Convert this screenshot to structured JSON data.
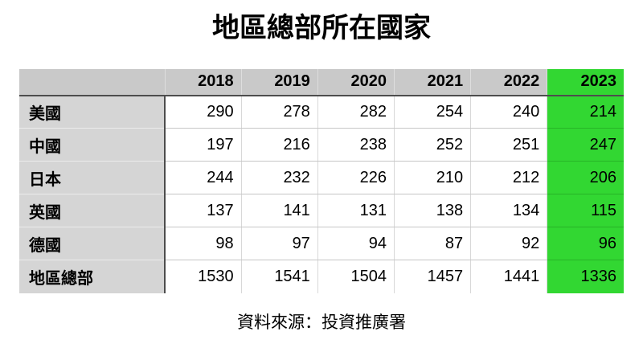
{
  "title": "地區總部所在國家",
  "source_note": "資料來源：投資推廣署",
  "colors": {
    "highlight_green": "#32d732",
    "highlight_green_divider": "#27b427",
    "header_gray": "#c9c9c9",
    "label_gray": "#d5d5d5",
    "dark_divider": "#4d4d4d"
  },
  "chart_data": {
    "type": "table",
    "title": "地區總部所在國家",
    "columns": [
      "2018",
      "2019",
      "2020",
      "2021",
      "2022",
      "2023"
    ],
    "highlighted_column": "2023",
    "rows": [
      {
        "label": "美國",
        "values": [
          290,
          278,
          282,
          254,
          240,
          214
        ]
      },
      {
        "label": "中國",
        "values": [
          197,
          216,
          238,
          252,
          251,
          247
        ]
      },
      {
        "label": "日本",
        "values": [
          244,
          232,
          226,
          210,
          212,
          206
        ]
      },
      {
        "label": "英國",
        "values": [
          137,
          141,
          131,
          138,
          134,
          115
        ]
      },
      {
        "label": "德國",
        "values": [
          98,
          97,
          94,
          87,
          92,
          96
        ]
      },
      {
        "label": "地區總部",
        "values": [
          1530,
          1541,
          1504,
          1457,
          1441,
          1336
        ]
      }
    ],
    "source": "資料來源：投資推廣署"
  }
}
